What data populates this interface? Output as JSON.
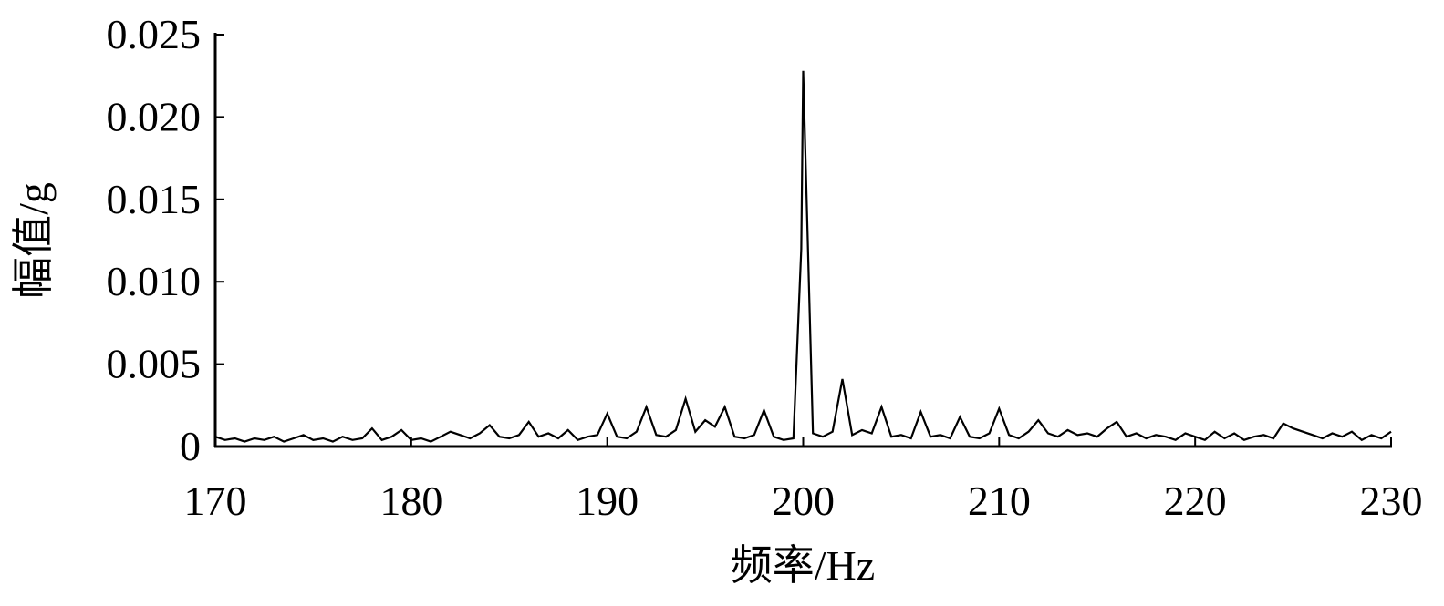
{
  "chart_data": {
    "type": "line",
    "title": "",
    "xlabel": "频率/Hz",
    "ylabel": "幅值/g",
    "xlim": [
      170,
      230
    ],
    "ylim": [
      0,
      0.025
    ],
    "xticks": [
      "170",
      "180",
      "190",
      "200",
      "210",
      "220",
      "230"
    ],
    "yticks": [
      "0",
      "0.005",
      "0.010",
      "0.015",
      "0.020",
      "0.025"
    ],
    "grid": false,
    "color": "#000000",
    "points": [
      [
        170,
        0.0006
      ],
      [
        170.5,
        0.0004
      ],
      [
        171,
        0.0005
      ],
      [
        171.5,
        0.0003
      ],
      [
        172,
        0.0005
      ],
      [
        172.5,
        0.0004
      ],
      [
        173,
        0.0006
      ],
      [
        173.5,
        0.0003
      ],
      [
        174,
        0.0005
      ],
      [
        174.5,
        0.0007
      ],
      [
        175,
        0.0004
      ],
      [
        175.5,
        0.0005
      ],
      [
        176,
        0.0003
      ],
      [
        176.5,
        0.0006
      ],
      [
        177,
        0.0004
      ],
      [
        177.5,
        0.0005
      ],
      [
        178,
        0.0011
      ],
      [
        178.5,
        0.0004
      ],
      [
        179,
        0.0006
      ],
      [
        179.5,
        0.001
      ],
      [
        180,
        0.0004
      ],
      [
        180.5,
        0.0005
      ],
      [
        181,
        0.0003
      ],
      [
        181.5,
        0.0006
      ],
      [
        182,
        0.0009
      ],
      [
        182.5,
        0.0007
      ],
      [
        183,
        0.0005
      ],
      [
        183.5,
        0.0008
      ],
      [
        184,
        0.0013
      ],
      [
        184.5,
        0.0006
      ],
      [
        185,
        0.0005
      ],
      [
        185.5,
        0.0007
      ],
      [
        186,
        0.0015
      ],
      [
        186.5,
        0.0006
      ],
      [
        187,
        0.0008
      ],
      [
        187.5,
        0.0005
      ],
      [
        188,
        0.001
      ],
      [
        188.5,
        0.0004
      ],
      [
        189,
        0.0006
      ],
      [
        189.5,
        0.0007
      ],
      [
        190,
        0.002
      ],
      [
        190.5,
        0.0006
      ],
      [
        191,
        0.0005
      ],
      [
        191.5,
        0.0009
      ],
      [
        192,
        0.0024
      ],
      [
        192.5,
        0.0007
      ],
      [
        193,
        0.0006
      ],
      [
        193.5,
        0.001
      ],
      [
        194,
        0.0029
      ],
      [
        194.5,
        0.0009
      ],
      [
        195,
        0.0016
      ],
      [
        195.5,
        0.0012
      ],
      [
        196,
        0.0024
      ],
      [
        196.5,
        0.0006
      ],
      [
        197,
        0.0005
      ],
      [
        197.5,
        0.0007
      ],
      [
        198,
        0.0022
      ],
      [
        198.5,
        0.0006
      ],
      [
        199,
        0.0004
      ],
      [
        199.5,
        0.0005
      ],
      [
        199.9,
        0.012
      ],
      [
        200,
        0.0228
      ],
      [
        200.5,
        0.0008
      ],
      [
        201,
        0.0006
      ],
      [
        201.5,
        0.0009
      ],
      [
        202,
        0.0041
      ],
      [
        202.5,
        0.0007
      ],
      [
        203,
        0.001
      ],
      [
        203.5,
        0.0008
      ],
      [
        204,
        0.0024
      ],
      [
        204.5,
        0.0006
      ],
      [
        205,
        0.0007
      ],
      [
        205.5,
        0.0005
      ],
      [
        206,
        0.0021
      ],
      [
        206.5,
        0.0006
      ],
      [
        207,
        0.0007
      ],
      [
        207.5,
        0.0005
      ],
      [
        208,
        0.0018
      ],
      [
        208.5,
        0.0006
      ],
      [
        209,
        0.0005
      ],
      [
        209.5,
        0.0008
      ],
      [
        210,
        0.0023
      ],
      [
        210.5,
        0.0007
      ],
      [
        211,
        0.0005
      ],
      [
        211.5,
        0.0009
      ],
      [
        212,
        0.0016
      ],
      [
        212.5,
        0.0008
      ],
      [
        213,
        0.0006
      ],
      [
        213.5,
        0.001
      ],
      [
        214,
        0.0007
      ],
      [
        214.5,
        0.0008
      ],
      [
        215,
        0.0006
      ],
      [
        215.5,
        0.0011
      ],
      [
        216,
        0.0015
      ],
      [
        216.5,
        0.0006
      ],
      [
        217,
        0.0008
      ],
      [
        217.5,
        0.0005
      ],
      [
        218,
        0.0007
      ],
      [
        218.5,
        0.0006
      ],
      [
        219,
        0.0004
      ],
      [
        219.5,
        0.0008
      ],
      [
        220,
        0.0006
      ],
      [
        220.5,
        0.0004
      ],
      [
        221,
        0.0009
      ],
      [
        221.5,
        0.0005
      ],
      [
        222,
        0.0008
      ],
      [
        222.5,
        0.0004
      ],
      [
        223,
        0.0006
      ],
      [
        223.5,
        0.0007
      ],
      [
        224,
        0.0005
      ],
      [
        224.5,
        0.0014
      ],
      [
        225,
        0.0011
      ],
      [
        225.5,
        0.0009
      ],
      [
        226,
        0.0007
      ],
      [
        226.5,
        0.0005
      ],
      [
        227,
        0.0008
      ],
      [
        227.5,
        0.0006
      ],
      [
        228,
        0.0009
      ],
      [
        228.5,
        0.0004
      ],
      [
        229,
        0.0007
      ],
      [
        229.5,
        0.0005
      ],
      [
        230,
        0.0009
      ]
    ]
  }
}
